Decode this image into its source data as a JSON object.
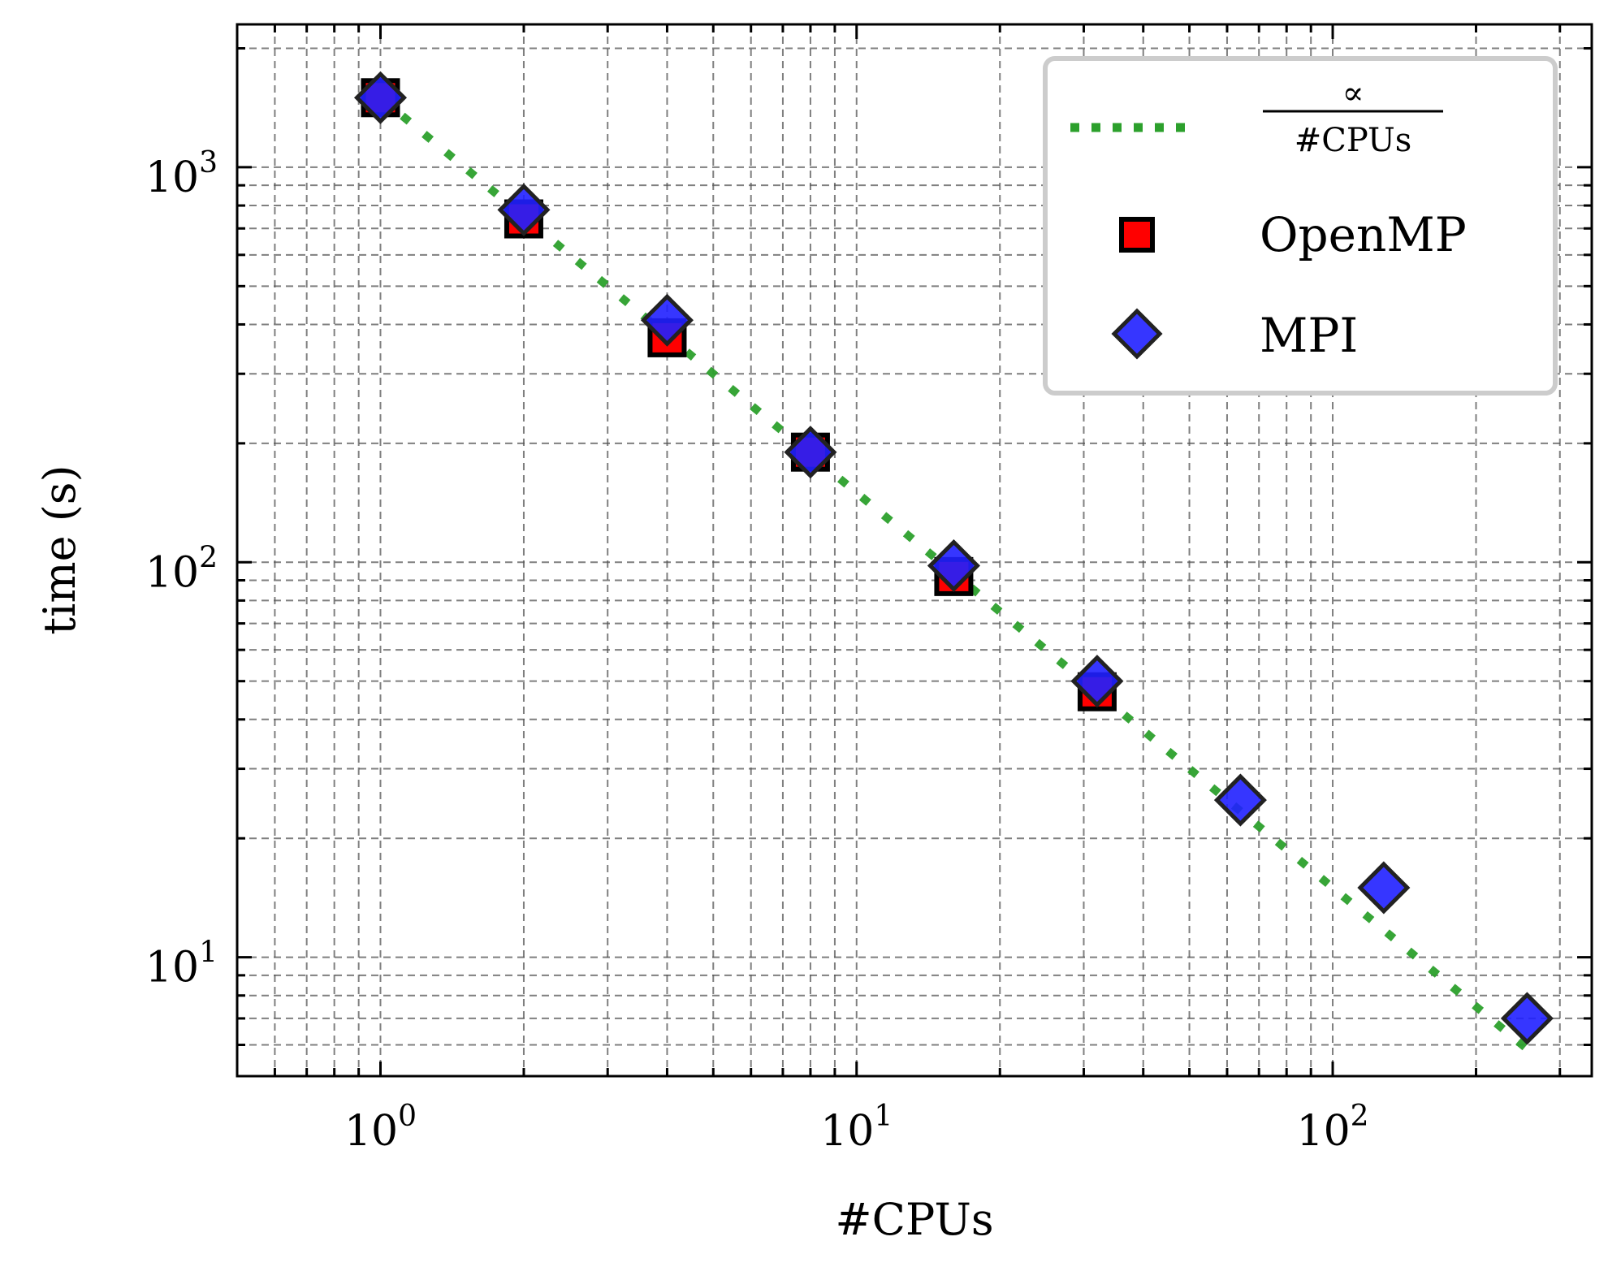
{
  "chart_data": {
    "type": "scatter",
    "xscale": "log",
    "yscale": "log",
    "xlabel": "#CPUs",
    "ylabel": "time (s)",
    "xlim": [
      0.5,
      350
    ],
    "ylim": [
      5,
      2300
    ],
    "grid": true,
    "legend_position": "top-right",
    "xticks": [
      {
        "base": "10",
        "exp": "0",
        "value": 1
      },
      {
        "base": "10",
        "exp": "1",
        "value": 10
      },
      {
        "base": "10",
        "exp": "2",
        "value": 100
      }
    ],
    "yticks": [
      {
        "base": "10",
        "exp": "1",
        "value": 10
      },
      {
        "base": "10",
        "exp": "2",
        "value": 100
      },
      {
        "base": "10",
        "exp": "3",
        "value": 1000
      }
    ],
    "reference_line": {
      "label_numerator": "∝",
      "label_denominator": "#CPUs",
      "color": "#2ca02c",
      "x": [
        1,
        256
      ],
      "y": [
        1500,
        5.86
      ]
    },
    "series": [
      {
        "name": "OpenMP",
        "marker": "square",
        "color": "#ff0000",
        "x": [
          1,
          2,
          4,
          8,
          16,
          32
        ],
        "y": [
          1500,
          740,
          370,
          190,
          92,
          47
        ]
      },
      {
        "name": "MPI",
        "marker": "diamond",
        "color": "#2020ff",
        "x": [
          1,
          2,
          4,
          8,
          16,
          32,
          64,
          128,
          256
        ],
        "y": [
          1500,
          780,
          410,
          190,
          98,
          50,
          25,
          15,
          7
        ]
      }
    ]
  }
}
